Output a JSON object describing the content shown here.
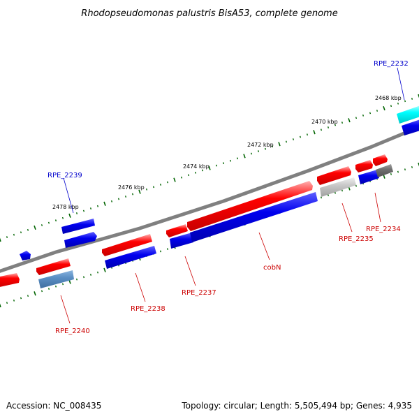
{
  "title": "Rhodopseudomonas palustris BisA53, complete genome",
  "footer": {
    "accession": "Accession: NC_008435",
    "stats": "Topology: circular; Length: 5,505,494 bp; Genes: 4,935"
  },
  "colors": {
    "forward_cds": "#ff0000",
    "reverse_cds": "#0000ee",
    "forward_other": "#c0c0c0",
    "reverse_other": "#5b8fc4",
    "rna": "#00ffff",
    "dark_feature": "#707070",
    "backbone": "#808080",
    "tick": "#006400",
    "forward_label": "#cc0000",
    "reverse_label": "#0000cc"
  },
  "tick_labels": [
    "2468 kbp",
    "2470 kbp",
    "2472 kbp",
    "2474 kbp",
    "2476 kbp",
    "2478 kbp"
  ],
  "gene_labels": [
    {
      "id": "rpe-2232",
      "text": "RPE_2232",
      "strand": "reverse"
    },
    {
      "id": "rpe-2234",
      "text": "RPE_2234",
      "strand": "forward"
    },
    {
      "id": "rpe-2235",
      "text": "RPE_2235",
      "strand": "forward"
    },
    {
      "id": "cobn",
      "text": "cobN",
      "strand": "forward"
    },
    {
      "id": "rpe-2237",
      "text": "RPE_2237",
      "strand": "forward"
    },
    {
      "id": "rpe-2238",
      "text": "RPE_2238",
      "strand": "forward"
    },
    {
      "id": "rpe-2239",
      "text": "RPE_2239",
      "strand": "reverse"
    },
    {
      "id": "rpe-2240",
      "text": "RPE_2240",
      "strand": "forward"
    }
  ]
}
